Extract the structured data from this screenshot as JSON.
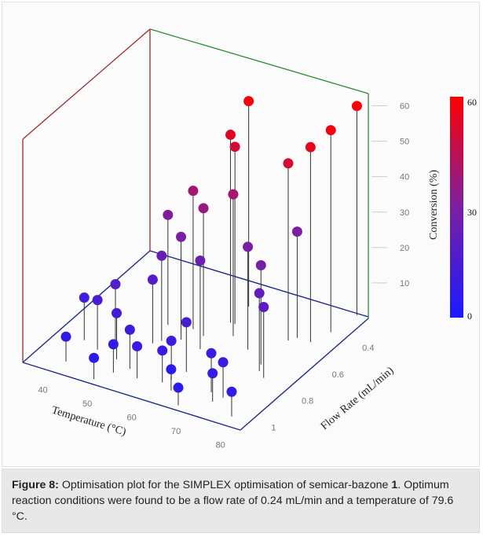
{
  "caption": {
    "label": "Figure 8:",
    "text_a": " Optimisation plot for the SIMPLEX optimisation of semicar-bazone ",
    "compound": "1",
    "text_b": ". Optimum reaction conditions were found to be a flow rate of 0.24 mL/min and a temperature of 79.6 °C."
  },
  "chart_data": {
    "type": "scatter",
    "title": "",
    "xlabel": "Temperature (°C)",
    "ylabel": "Flow Rate (mL/min)",
    "zlabel": "Conversion (%)",
    "x_ticks": [
      "40",
      "50",
      "60",
      "70",
      "80"
    ],
    "y_ticks": [
      "0.4",
      "0.6",
      "0.8",
      "1"
    ],
    "z_ticks": [
      "10",
      "20",
      "30",
      "40",
      "50",
      "60"
    ],
    "xlim": [
      33,
      82
    ],
    "ylim": [
      1.08,
      0.24
    ],
    "zlim": [
      0,
      63
    ],
    "colorbar": {
      "min": 0,
      "max": 60,
      "ticks": [
        "0",
        "30",
        "60"
      ],
      "low_color": "#1a1aff",
      "mid_color": "#7b1fa2",
      "high_color": "#ff0000"
    },
    "stem_line": true,
    "points": [
      {
        "x": 60,
        "y": 0.38,
        "z": 58
      },
      {
        "x": 79.6,
        "y": 0.24,
        "z": 59
      },
      {
        "x": 78.5,
        "y": 0.38,
        "z": 57
      },
      {
        "x": 77,
        "y": 0.47,
        "z": 55
      },
      {
        "x": 60,
        "y": 0.5,
        "z": 53
      },
      {
        "x": 61,
        "y": 0.5,
        "z": 50
      },
      {
        "x": 73,
        "y": 0.5,
        "z": 50
      },
      {
        "x": 63,
        "y": 0.57,
        "z": 40
      },
      {
        "x": 55,
        "y": 0.6,
        "z": 39
      },
      {
        "x": 58,
        "y": 0.62,
        "z": 36
      },
      {
        "x": 74,
        "y": 0.47,
        "z": 30
      },
      {
        "x": 68,
        "y": 0.62,
        "z": 29
      },
      {
        "x": 50,
        "y": 0.62,
        "z": 31
      },
      {
        "x": 55,
        "y": 0.68,
        "z": 29
      },
      {
        "x": 73,
        "y": 0.68,
        "z": 28
      },
      {
        "x": 74,
        "y": 0.72,
        "z": 22
      },
      {
        "x": 76,
        "y": 0.75,
        "z": 20
      },
      {
        "x": 60,
        "y": 0.7,
        "z": 25
      },
      {
        "x": 52,
        "y": 0.72,
        "z": 24
      },
      {
        "x": 45,
        "y": 0.82,
        "z": 17
      },
      {
        "x": 51,
        "y": 0.75,
        "z": 18
      },
      {
        "x": 43,
        "y": 0.88,
        "z": 14
      },
      {
        "x": 62,
        "y": 0.85,
        "z": 14
      },
      {
        "x": 48,
        "y": 0.9,
        "z": 13
      },
      {
        "x": 52,
        "y": 0.93,
        "z": 11
      },
      {
        "x": 61,
        "y": 0.92,
        "z": 11
      },
      {
        "x": 70,
        "y": 0.92,
        "z": 11
      },
      {
        "x": 39,
        "y": 0.85,
        "z": 12
      },
      {
        "x": 73,
        "y": 0.93,
        "z": 10
      },
      {
        "x": 72,
        "y": 0.97,
        "z": 8
      },
      {
        "x": 63,
        "y": 0.98,
        "z": 6
      },
      {
        "x": 60,
        "y": 0.95,
        "z": 9
      },
      {
        "x": 55,
        "y": 0.97,
        "z": 9
      },
      {
        "x": 50,
        "y": 0.98,
        "z": 8
      },
      {
        "x": 78,
        "y": 1.02,
        "z": 7
      },
      {
        "x": 67,
        "y": 1.05,
        "z": 5
      },
      {
        "x": 48,
        "y": 1.05,
        "z": 6
      },
      {
        "x": 40,
        "y": 1.0,
        "z": 7
      }
    ]
  }
}
